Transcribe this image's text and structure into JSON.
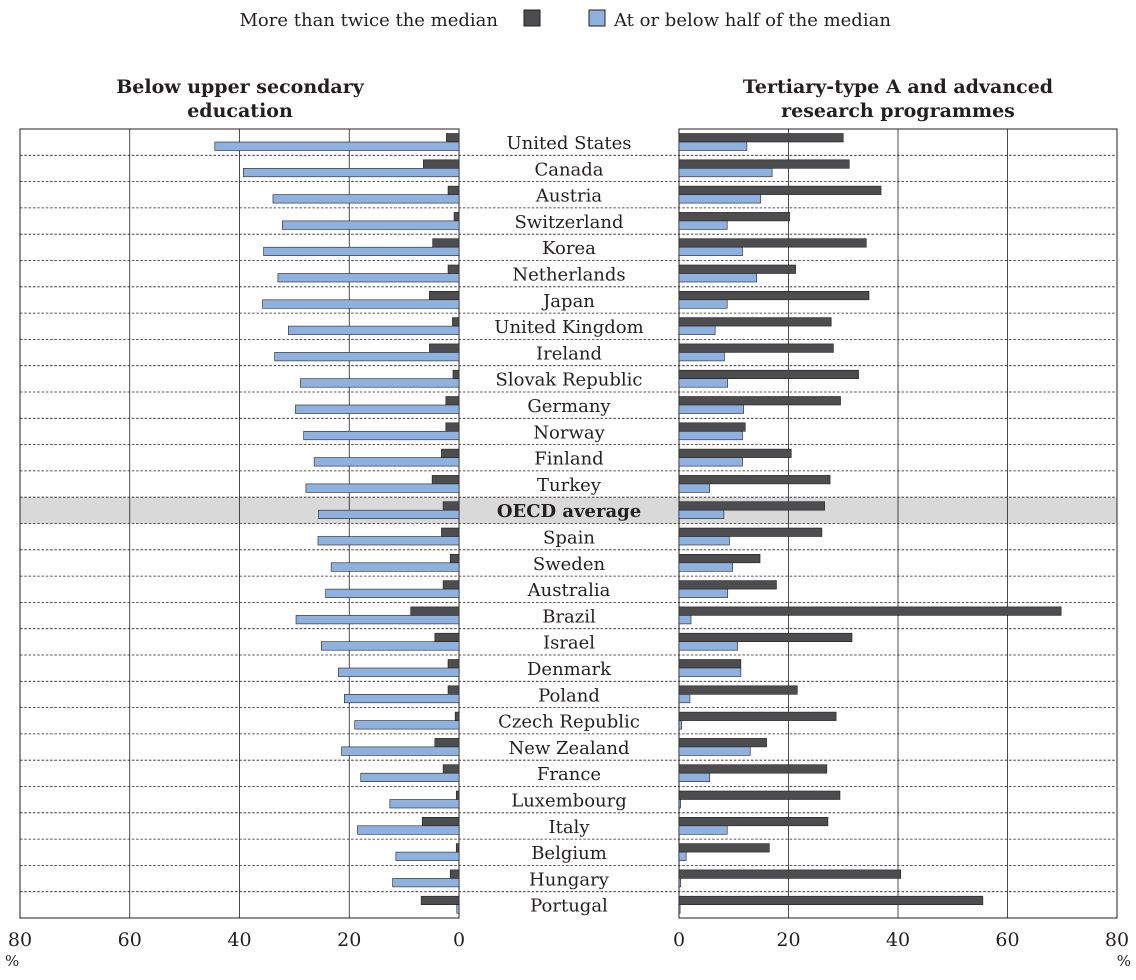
{
  "legend": {
    "more_than_twice_label": "More than twice the median",
    "at_or_below_half_label": "At or below half of the median"
  },
  "colors": {
    "more_than_twice": "#4d4d4f",
    "at_or_below_half": "#8fb1e0",
    "highlight_row": "#d9d9d9"
  },
  "chart_data": [
    {
      "type": "bar",
      "orientation": "horizontal",
      "title": "Below upper secondary education",
      "title_lines": [
        "Below upper secondary",
        "education"
      ],
      "x_direction": "reversed",
      "xlim": [
        0,
        80
      ],
      "ticks": [
        80,
        60,
        40,
        20,
        0
      ],
      "unit_label": "%",
      "grid": true,
      "categories": [
        "United States",
        "Canada",
        "Austria",
        "Switzerland",
        "Korea",
        "Netherlands",
        "Japan",
        "United Kingdom",
        "Ireland",
        "Slovak Republic",
        "Germany",
        "Norway",
        "Finland",
        "Turkey",
        "OECD average",
        "Spain",
        "Sweden",
        "Australia",
        "Brazil",
        "Israel",
        "Denmark",
        "Poland",
        "Czech Republic",
        "New Zealand",
        "France",
        "Luxembourg",
        "Italy",
        "Belgium",
        "Hungary",
        "Portugal"
      ],
      "series": [
        {
          "name": "More than twice the median",
          "values": [
            2.3,
            6.5,
            2.0,
            0.9,
            4.8,
            2.0,
            5.4,
            1.2,
            5.4,
            1.1,
            2.4,
            2.4,
            3.2,
            4.9,
            2.9,
            3.2,
            1.6,
            2.9,
            8.8,
            4.4,
            2.0,
            2.0,
            0.7,
            4.4,
            2.9,
            0.5,
            6.7,
            0.5,
            1.6,
            6.9
          ]
        },
        {
          "name": "At or below half of the median",
          "values": [
            44.5,
            39.3,
            33.9,
            32.2,
            35.6,
            33.0,
            35.8,
            31.1,
            33.6,
            28.9,
            29.8,
            28.3,
            26.4,
            27.9,
            25.6,
            25.7,
            23.3,
            24.3,
            29.7,
            25.1,
            22.0,
            20.9,
            19.0,
            21.4,
            17.9,
            12.6,
            18.5,
            11.5,
            12.1,
            0.4
          ]
        }
      ]
    },
    {
      "type": "bar",
      "orientation": "horizontal",
      "title": "Tertiary-type A and advanced research programmes",
      "title_lines": [
        "Tertiary-type A and advanced",
        "research programmes"
      ],
      "xlim": [
        0,
        80
      ],
      "ticks": [
        0,
        20,
        40,
        60,
        80
      ],
      "unit_label": "%",
      "grid": true,
      "categories": [
        "United States",
        "Canada",
        "Austria",
        "Switzerland",
        "Korea",
        "Netherlands",
        "Japan",
        "United Kingdom",
        "Ireland",
        "Slovak Republic",
        "Germany",
        "Norway",
        "Finland",
        "Turkey",
        "OECD average",
        "Spain",
        "Sweden",
        "Australia",
        "Brazil",
        "Israel",
        "Denmark",
        "Poland",
        "Czech Republic",
        "New Zealand",
        "France",
        "Luxembourg",
        "Italy",
        "Belgium",
        "Hungary",
        "Portugal"
      ],
      "series": [
        {
          "name": "More than twice the median",
          "values": [
            30.0,
            31.1,
            36.9,
            20.2,
            34.2,
            21.3,
            34.7,
            27.8,
            28.2,
            32.8,
            29.5,
            12.1,
            20.5,
            27.6,
            26.6,
            26.1,
            14.8,
            17.8,
            69.8,
            31.6,
            11.3,
            21.6,
            28.7,
            16.0,
            27.0,
            29.4,
            27.2,
            16.5,
            40.5,
            55.5
          ]
        },
        {
          "name": "At or below half of the median",
          "values": [
            12.4,
            17.0,
            14.9,
            8.8,
            11.6,
            14.2,
            8.8,
            6.6,
            8.3,
            8.9,
            11.8,
            11.6,
            11.6,
            5.6,
            8.2,
            9.2,
            9.8,
            8.9,
            2.2,
            10.7,
            11.3,
            2.0,
            0.5,
            13.0,
            5.6,
            0.3,
            8.8,
            1.3,
            0.3,
            0.2
          ]
        }
      ]
    }
  ],
  "highlight_category": "OECD average"
}
